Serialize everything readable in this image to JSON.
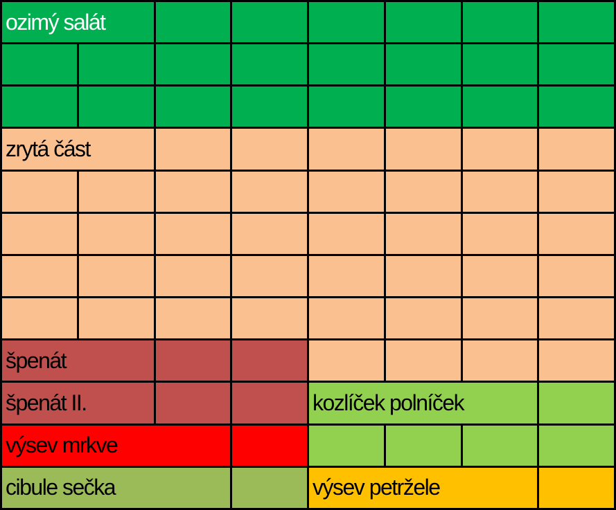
{
  "labels": {
    "ozimy_salat": "ozimý salát",
    "zryta_cast": "zrytá část",
    "spenat": "špenát",
    "spenat_2": "špenát II.",
    "kozlicek": "kozlíček polníček",
    "vysev_mrkve": "výsev mrkve",
    "cibule": "cibule sečka",
    "petrzel": "výsev petržele"
  }
}
